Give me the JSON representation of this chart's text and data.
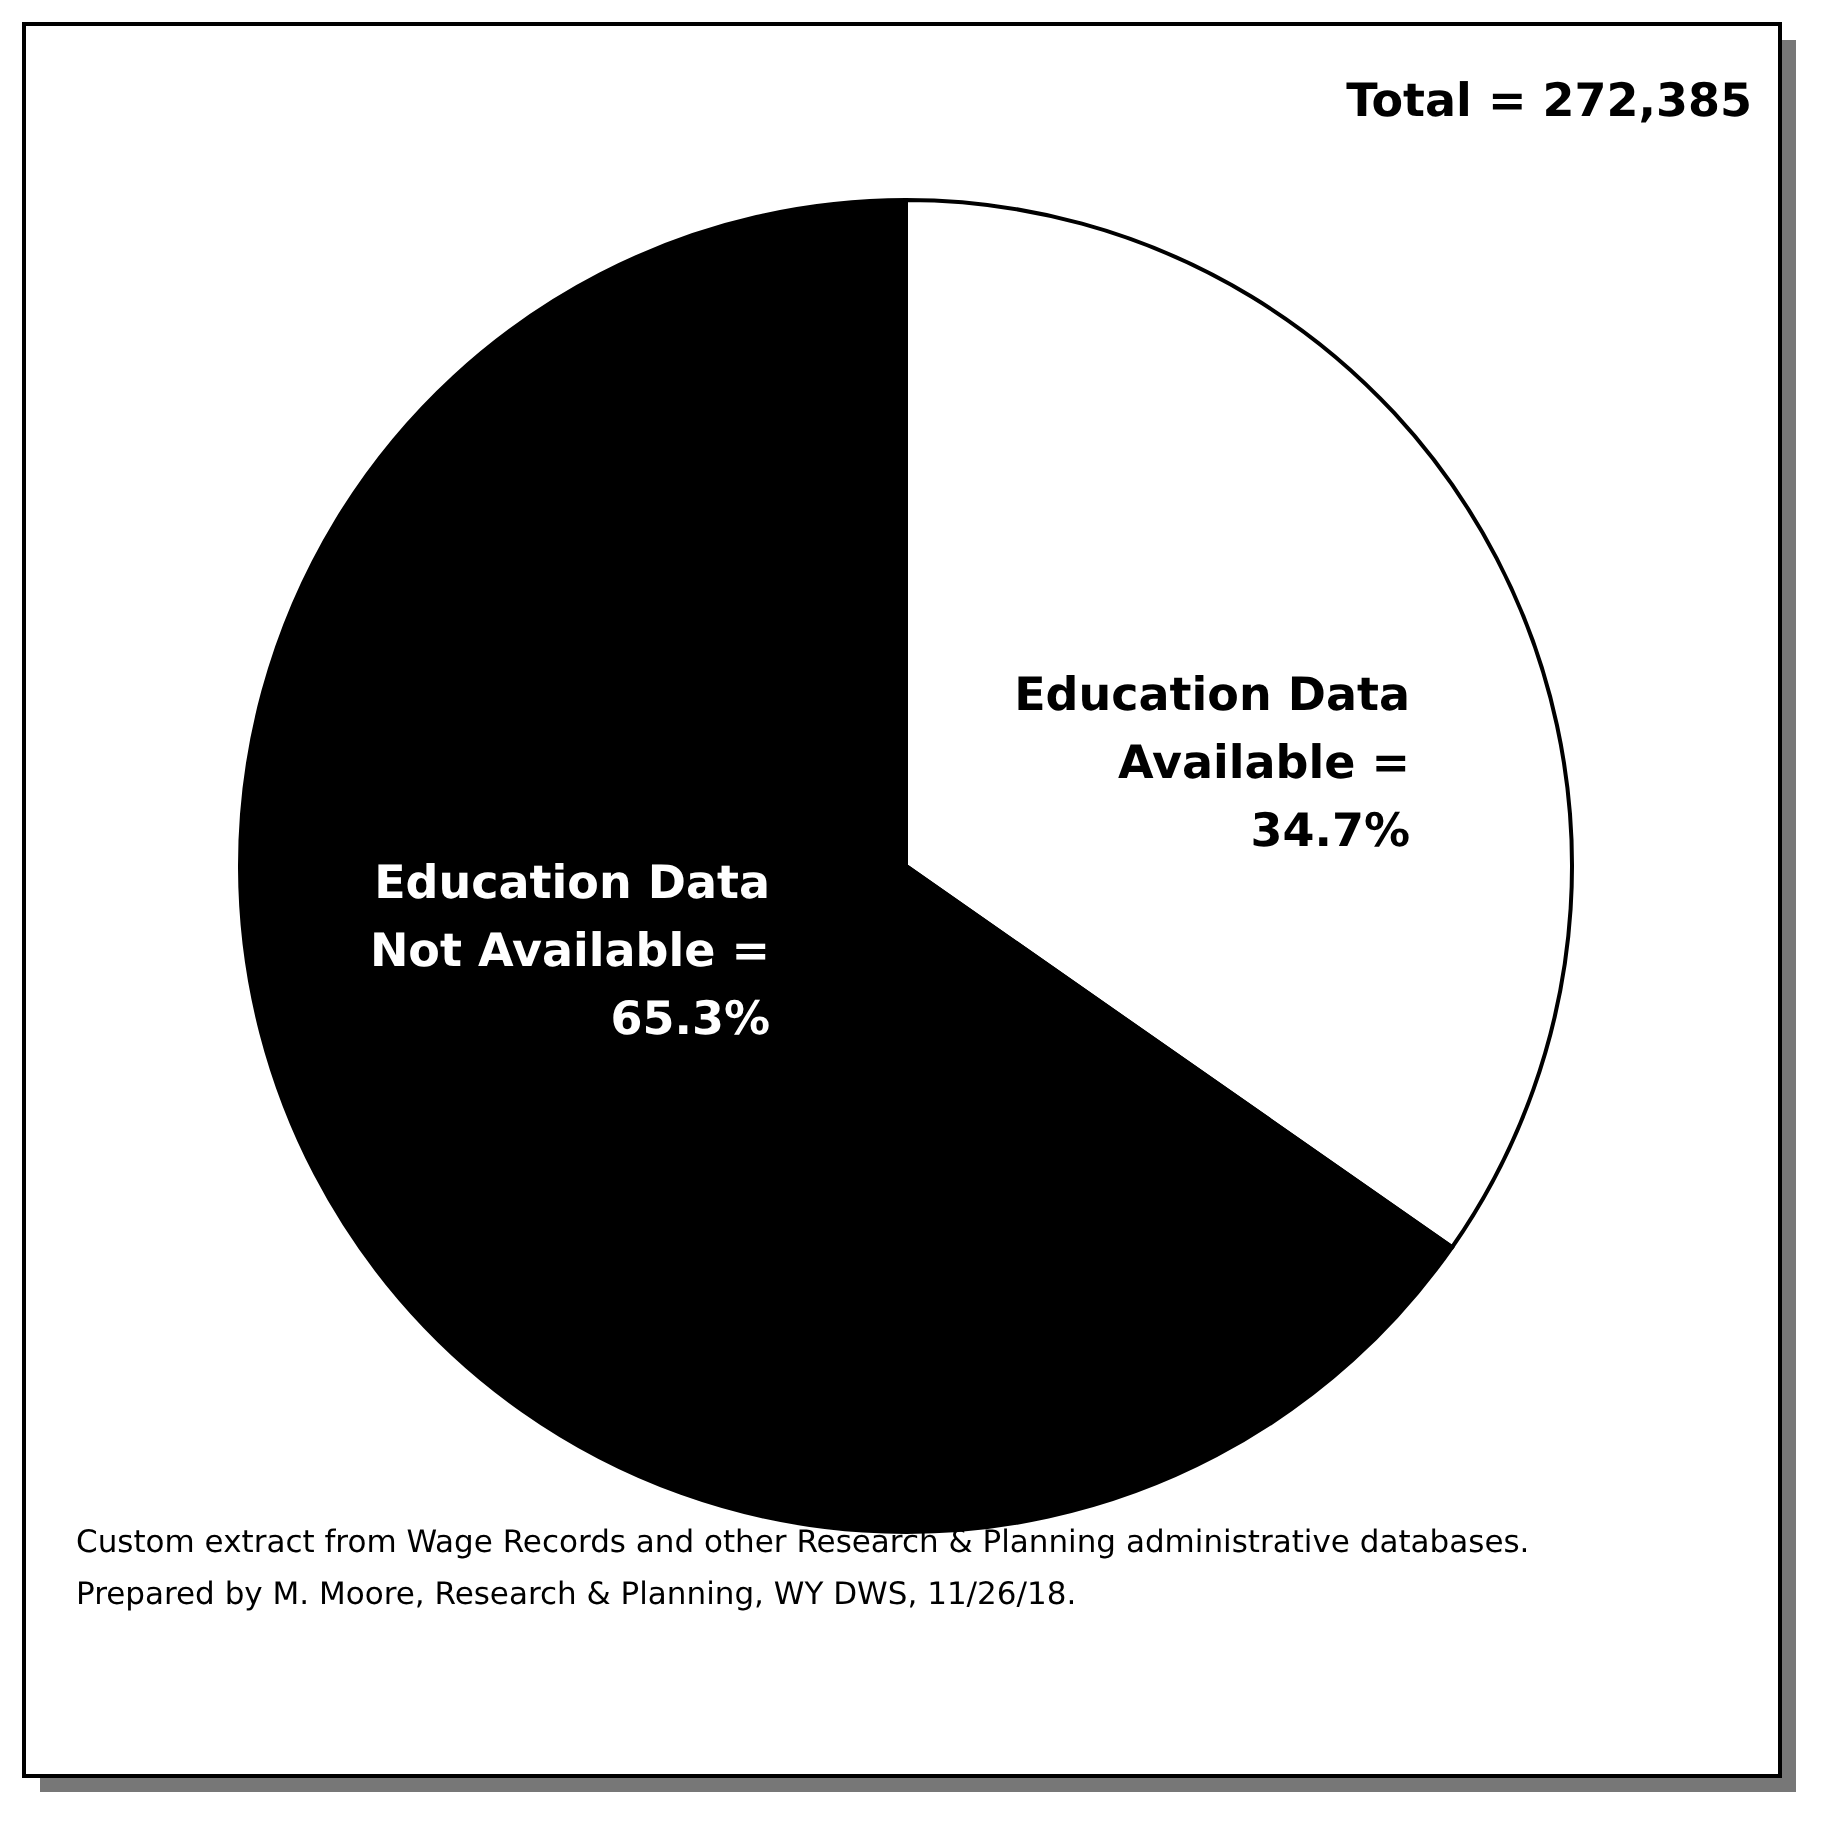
{
  "chart_data": {
    "type": "pie",
    "title": "Total = 272,385",
    "categories": [
      "Education Data Available =",
      "Education Data Not Available ="
    ],
    "values": [
      34.7,
      65.3
    ],
    "value_labels": [
      "34.7%",
      "65.3%"
    ],
    "colors": [
      "#ffffff",
      "#000000"
    ],
    "annotations": [
      "Custom extract from Wage Records and other Research & Planning administrative databases.",
      "Prepared by M. Moore, Research & Planning, WY DWS, 11/26/18."
    ]
  }
}
